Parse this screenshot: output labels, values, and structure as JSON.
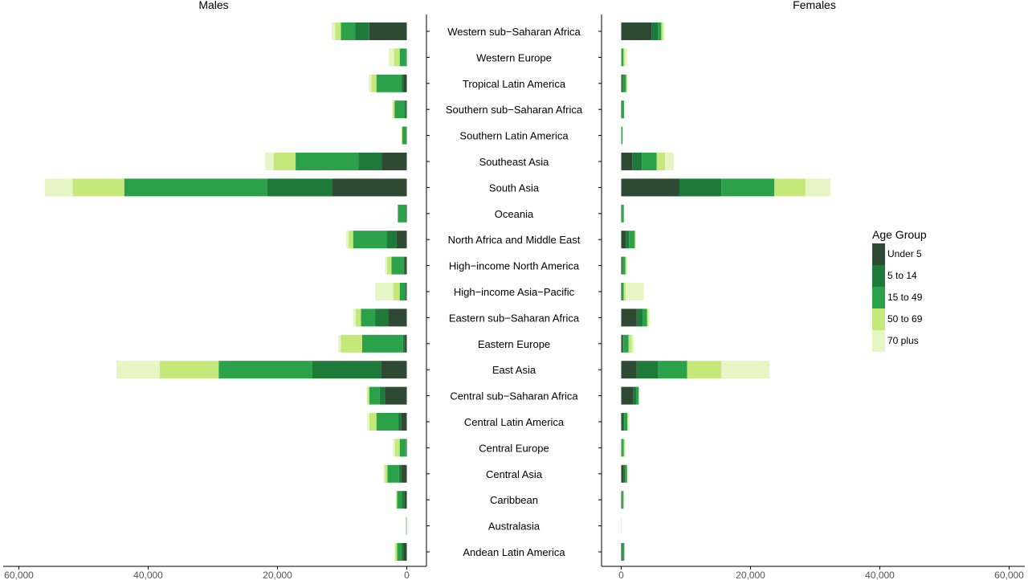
{
  "chart_data": {
    "type": "bar",
    "orientation": "horizontal",
    "stacked": true,
    "layout": "population-pyramid",
    "panels": [
      {
        "name": "Males",
        "direction": "reversed",
        "xlim": [
          0,
          60000
        ]
      },
      {
        "name": "Females",
        "direction": "normal",
        "xlim": [
          0,
          60000
        ]
      }
    ],
    "x_ticks": [
      0,
      20000,
      40000,
      60000
    ],
    "x_tick_labels": [
      "0",
      "20,000",
      "40,000",
      "60,000"
    ],
    "categories": [
      "Western sub−Saharan Africa",
      "Western Europe",
      "Tropical Latin America",
      "Southern sub−Saharan Africa",
      "Southern Latin America",
      "Southeast Asia",
      "South Asia",
      "Oceania",
      "North Africa and Middle East",
      "High−income North America",
      "High−income Asia−Pacific",
      "Eastern sub−Saharan Africa",
      "Eastern Europe",
      "East Asia",
      "Central sub−Saharan Africa",
      "Central Latin America",
      "Central Europe",
      "Central Asia",
      "Caribbean",
      "Australasia",
      "Andean Latin America"
    ],
    "legend": {
      "title": "Age Group",
      "position": "right",
      "entries": [
        {
          "label": "Under 5",
          "color": "#2e4a33"
        },
        {
          "label": "5 to 14",
          "color": "#1e7a38"
        },
        {
          "label": "15 to 49",
          "color": "#2ba24a"
        },
        {
          "label": "50 to 69",
          "color": "#c5e87a"
        },
        {
          "label": "70 plus",
          "color": "#e6f5c4"
        }
      ]
    },
    "series": {
      "Males": {
        "Under 5": [
          5800,
          0,
          500,
          150,
          50,
          3900,
          11600,
          100,
          1600,
          300,
          100,
          2900,
          300,
          4000,
          3400,
          900,
          80,
          800,
          400,
          20,
          500
        ],
        "5 to 14": [
          2200,
          100,
          300,
          250,
          100,
          3600,
          10000,
          80,
          1500,
          180,
          200,
          2000,
          300,
          10600,
          800,
          400,
          70,
          400,
          350,
          10,
          300
        ],
        "15 to 49": [
          2200,
          1000,
          3900,
          1500,
          550,
          9700,
          22100,
          1200,
          5200,
          1900,
          800,
          2200,
          6300,
          14500,
          1600,
          3400,
          950,
          1800,
          750,
          60,
          700
        ],
        "50 to 69": [
          900,
          900,
          800,
          250,
          100,
          3400,
          8000,
          20,
          700,
          700,
          1000,
          800,
          3300,
          9100,
          300,
          1100,
          750,
          400,
          150,
          70,
          300
        ],
        "70 plus": [
          500,
          800,
          400,
          100,
          50,
          1300,
          4300,
          10,
          400,
          300,
          2800,
          400,
          400,
          6700,
          100,
          300,
          300,
          200,
          50,
          50,
          100
        ]
      },
      "Females": {
        "Under 5": [
          4700,
          0,
          150,
          80,
          30,
          1700,
          9000,
          60,
          700,
          150,
          80,
          2400,
          200,
          2400,
          1900,
          300,
          50,
          400,
          80,
          0,
          150
        ],
        "5 to 14": [
          1000,
          50,
          100,
          100,
          20,
          1500,
          6500,
          40,
          500,
          80,
          100,
          900,
          150,
          3300,
          400,
          150,
          50,
          200,
          80,
          0,
          80
        ],
        "15 to 49": [
          500,
          300,
          500,
          250,
          150,
          2300,
          8200,
          300,
          900,
          400,
          200,
          700,
          800,
          4500,
          400,
          500,
          300,
          300,
          200,
          20,
          250
        ],
        "50 to 69": [
          300,
          250,
          150,
          50,
          30,
          1300,
          4800,
          10,
          100,
          200,
          300,
          200,
          500,
          5300,
          80,
          150,
          150,
          80,
          30,
          20,
          50
        ],
        "70 plus": [
          200,
          350,
          100,
          30,
          20,
          1300,
          3900,
          5,
          100,
          150,
          2800,
          200,
          300,
          7400,
          40,
          100,
          100,
          20,
          10,
          10,
          20
        ]
      }
    }
  }
}
